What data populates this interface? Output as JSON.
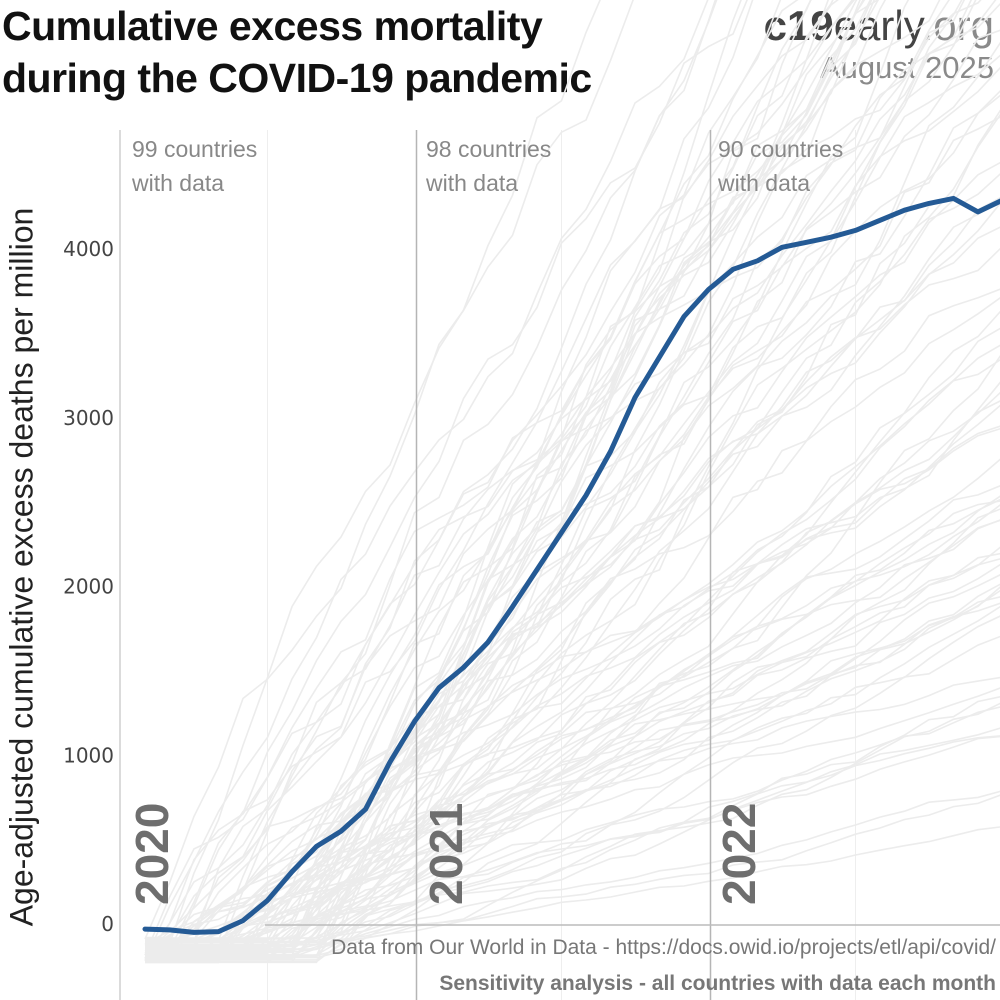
{
  "header": {
    "title_line1": "Cumulative excess mortality",
    "title_line2": "during the COVID-19 pandemic",
    "brand_bold": "c19",
    "brand_mid": "early",
    "brand_light": ".org",
    "date": "August 2025"
  },
  "annotations": {
    "period_2020_line1": "99 countries",
    "period_2020_line2": "with data",
    "period_2021_line1": "98 countries",
    "period_2021_line2": "with data",
    "period_2022_line1": "90 countries",
    "period_2022_line2": "with data",
    "source": "Data from Our World in Data - https://docs.owid.io/projects/etl/api/covid/",
    "note": "Sensitivity analysis - all countries with data each month"
  },
  "colors": {
    "main_series": "#245a95",
    "background_series": "#ececec",
    "year_divider": "#b5b5b5"
  },
  "chart_data": {
    "type": "line",
    "title": "Cumulative excess mortality during the COVID-19 pandemic",
    "xlabel": "",
    "ylabel": "Age-adjusted cumulative excess deaths per million",
    "y_ticks": [
      0,
      1000,
      2000,
      3000,
      4000
    ],
    "ylim": [
      -450,
      4700
    ],
    "x_unit": "month",
    "xlim": [
      "2020-01",
      "2023-03"
    ],
    "year_labels": [
      "2020",
      "2021",
      "2022"
    ],
    "grid": true,
    "series": [
      {
        "x": [
          "2020-02",
          "2020-03",
          "2020-04",
          "2020-05",
          "2020-06",
          "2020-07",
          "2020-08",
          "2020-09",
          "2020-10",
          "2020-11",
          "2020-12",
          "2021-01",
          "2021-02",
          "2021-03",
          "2021-04",
          "2021-05",
          "2021-06",
          "2021-07",
          "2021-08",
          "2021-09",
          "2021-10",
          "2021-11",
          "2021-12",
          "2022-01",
          "2022-02",
          "2022-03",
          "2022-04",
          "2022-05",
          "2022-06",
          "2022-07",
          "2022-08",
          "2022-09",
          "2022-10",
          "2022-11",
          "2022-12",
          "2023-01"
        ],
        "y": [
          -30,
          -35,
          -50,
          -45,
          20,
          140,
          310,
          460,
          550,
          680,
          960,
          1200,
          1400,
          1520,
          1670,
          1880,
          2100,
          2320,
          2540,
          2800,
          3120,
          3360,
          3600,
          3760,
          3880,
          3930,
          4010,
          4040,
          4070,
          4110,
          4170,
          4230,
          4270,
          4300,
          4220,
          4290
        ]
      }
    ],
    "background_series_count": 99
  }
}
